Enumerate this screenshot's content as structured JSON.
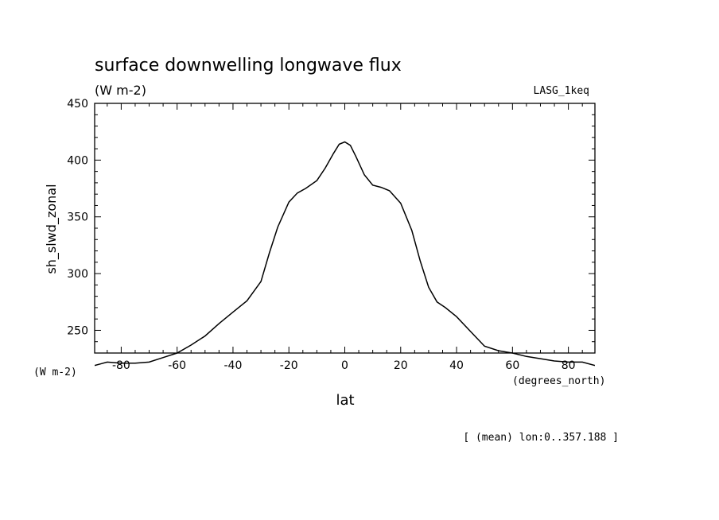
{
  "chart_data": {
    "type": "line",
    "title": "surface downwelling longwave flux",
    "units": "(W m-2)",
    "dataset": "LASG_1keq",
    "ylabel": "sh_slwd_zonal",
    "xlabel": "lat",
    "x_units": "(degrees_north)",
    "y_units": "(W m-2)",
    "footnote": "[ (mean) lon:0..357.188 ]",
    "xlim": [
      -89.5,
      89.5
    ],
    "ylim": [
      230,
      450
    ],
    "x_ticks": [
      -80,
      -60,
      -40,
      -20,
      0,
      20,
      40,
      60,
      80
    ],
    "x_tick_labels": [
      "-80",
      "-60",
      "-40",
      "-20",
      "0",
      "20",
      "40",
      "60",
      "80"
    ],
    "y_ticks": [
      250,
      300,
      350,
      400,
      450
    ],
    "y_tick_labels": [
      "250",
      "300",
      "350",
      "400",
      "450"
    ],
    "grid": false,
    "series": [
      {
        "x": [
          -89.5,
          -85,
          -80,
          -75,
          -70,
          -65,
          -60,
          -55,
          -50,
          -45,
          -40,
          -35,
          -30,
          -27,
          -24,
          -20,
          -17,
          -14,
          -10,
          -7,
          -4,
          -2,
          0,
          2,
          4,
          7,
          10,
          13,
          16,
          20,
          24,
          27,
          30,
          33,
          36,
          40,
          45,
          50,
          55,
          60,
          65,
          70,
          75,
          80,
          85,
          89.5
        ],
        "y": [
          219,
          222,
          221,
          221,
          222,
          226,
          230,
          237,
          245,
          256,
          266,
          276,
          293,
          318,
          341,
          363,
          371,
          375,
          382,
          393,
          406,
          414,
          416,
          413,
          403,
          387,
          378,
          376,
          373,
          362,
          338,
          311,
          288,
          275,
          270,
          262,
          249,
          236,
          232,
          230,
          227,
          225,
          223,
          222,
          222,
          219
        ]
      }
    ]
  }
}
